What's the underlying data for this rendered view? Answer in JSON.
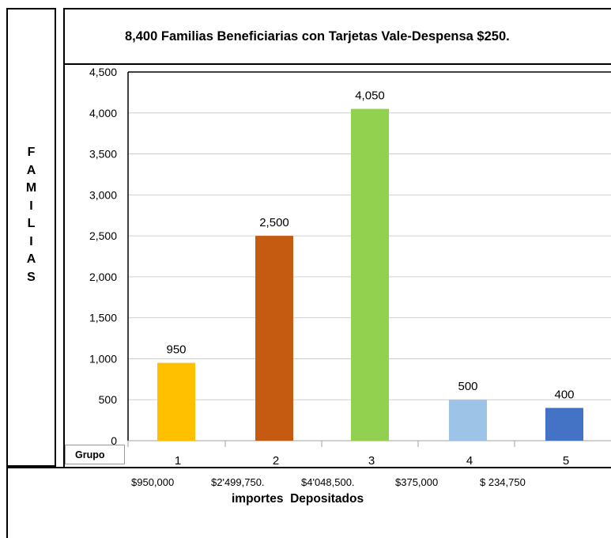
{
  "chart_data": {
    "type": "bar",
    "title": "8,400 Familias Beneficiarias con Tarjetas Vale-Despensa $250.",
    "ylabel_letters": [
      "F",
      "A",
      "M",
      "I",
      "L",
      "I",
      "A",
      "S"
    ],
    "xlabel": "importes  Depositados",
    "category_header": "Grupo",
    "categories": [
      "1",
      "2",
      "3",
      "4",
      "5"
    ],
    "amounts": [
      "$950,000",
      "$2'499,750.",
      "$4'048,500.",
      "$375,000",
      "$ 234,750"
    ],
    "values": [
      950,
      2500,
      4050,
      500,
      400
    ],
    "data_labels": [
      "950",
      "2,500",
      "4,050",
      "500",
      "400"
    ],
    "colors": [
      "#FFC000",
      "#C55A11",
      "#92D050",
      "#9DC3E6",
      "#4472C4"
    ],
    "ylim": [
      0,
      4500
    ],
    "yticks": [
      0,
      500,
      1000,
      1500,
      2000,
      2500,
      3000,
      3500,
      4000,
      4500
    ],
    "ytick_labels": [
      "0",
      "500",
      "1,000",
      "1,500",
      "2,000",
      "2,500",
      "3,000",
      "3,500",
      "4,000",
      "4,500"
    ],
    "grid": true
  }
}
